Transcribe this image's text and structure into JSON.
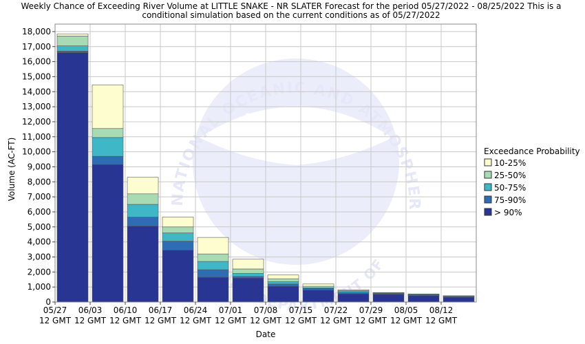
{
  "chart_data": {
    "type": "bar",
    "stacked": true,
    "title_line1": "Weekly Chance of Exceeding River Volume at LITTLE SNAKE - NR SLATER Forecast for the period 05/27/2022 - 08/25/2022 This is a",
    "title_line2": "conditional simulation based on the current conditions as of 05/27/2022",
    "xlabel": "Date",
    "ylabel": "Volume (AC-FT)",
    "ylim": [
      0,
      18500
    ],
    "y_ticks": [
      "0",
      "1,000",
      "2,000",
      "3,000",
      "4,000",
      "5,000",
      "6,000",
      "7,000",
      "8,000",
      "9,000",
      "10,000",
      "11,000",
      "12,000",
      "13,000",
      "14,000",
      "15,000",
      "16,000",
      "17,000",
      "18,000"
    ],
    "x_ticks": [
      {
        "date": "05/27",
        "time": "12 GMT"
      },
      {
        "date": "06/03",
        "time": "12 GMT"
      },
      {
        "date": "06/10",
        "time": "12 GMT"
      },
      {
        "date": "06/17",
        "time": "12 GMT"
      },
      {
        "date": "06/24",
        "time": "12 GMT"
      },
      {
        "date": "07/01",
        "time": "12 GMT"
      },
      {
        "date": "07/08",
        "time": "12 GMT"
      },
      {
        "date": "07/15",
        "time": "12 GMT"
      },
      {
        "date": "07/22",
        "time": "12 GMT"
      },
      {
        "date": "07/29",
        "time": "12 GMT"
      },
      {
        "date": "08/05",
        "time": "12 GMT"
      },
      {
        "date": "08/12",
        "time": "12 GMT"
      }
    ],
    "legend_title": "Exceedance Probability",
    "legend_position": "right",
    "grid": true,
    "series": [
      {
        "name": "> 90%",
        "color": "#283593",
        "values": [
          16600,
          9150,
          5050,
          3450,
          1650,
          1600,
          1050,
          800,
          540,
          510,
          420,
          320
        ]
      },
      {
        "name": "75-90%",
        "color": "#2e6db4",
        "values": [
          100,
          550,
          600,
          600,
          500,
          100,
          150,
          100,
          90,
          40,
          30,
          40
        ]
      },
      {
        "name": "50-75%",
        "color": "#3fb7c6",
        "values": [
          350,
          1250,
          850,
          550,
          550,
          200,
          150,
          50,
          70,
          40,
          40,
          40
        ]
      },
      {
        "name": "25-50%",
        "color": "#a8dbb4",
        "values": [
          650,
          600,
          700,
          400,
          500,
          300,
          200,
          100,
          60,
          20,
          20,
          10
        ]
      },
      {
        "name": "10-25%",
        "color": "#fefdd0",
        "values": [
          150,
          2900,
          1100,
          650,
          1100,
          650,
          250,
          150,
          60,
          20,
          30,
          10
        ]
      }
    ]
  },
  "watermark": {
    "logo_text": "NOAA",
    "ring_text_top": "NATIONAL OCEANIC AND ATMOSPHERIC ADMINISTRATION",
    "ring_text_bottom": "U.S. DEPARTMENT OF COMMERCE"
  }
}
